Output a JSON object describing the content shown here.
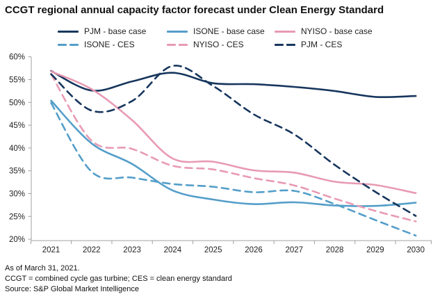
{
  "page": {
    "title": "CCGT regional annual capacity factor forecast under Clean Energy Standard",
    "footer_lines": [
      "As of March 31, 2021.",
      "CCGT = combined cycle gas turbine; CES = clean energy standard",
      "Source: S&P Global Market Intelligence"
    ]
  },
  "colors": {
    "navy": "#17365d",
    "blue": "#549ec9",
    "pink": "#e89ab3",
    "axis": "#a0a0a0",
    "text": "#1f1f1f"
  },
  "chart_data": {
    "type": "line",
    "title": "CCGT regional annual capacity factor forecast under Clean Energy Standard",
    "x": [
      2021,
      2022,
      2023,
      2024,
      2025,
      2026,
      2027,
      2028,
      2029,
      2030
    ],
    "x_tick_labels": [
      "2021",
      "2022",
      "2023",
      "2024",
      "2025",
      "2026",
      "2027",
      "2028",
      "2029",
      "2030"
    ],
    "y_tick_labels": [
      "60%",
      "55%",
      "50%",
      "45%",
      "40%",
      "35%",
      "30%",
      "25%",
      "20%"
    ],
    "y_ticks": [
      60,
      55,
      50,
      45,
      40,
      35,
      30,
      25,
      20
    ],
    "ylim": [
      20,
      60
    ],
    "grid": false,
    "legend_position": "top",
    "units": "percent",
    "series": [
      {
        "name": "PJM - base case",
        "color": "navy",
        "style": "solid",
        "values": [
          56.9,
          52.6,
          54.6,
          56.5,
          54.2,
          54.0,
          53.4,
          52.5,
          51.2,
          51.4
        ]
      },
      {
        "name": "ISONE - base case",
        "color": "blue",
        "style": "solid",
        "values": [
          50.4,
          41.0,
          36.5,
          30.7,
          28.7,
          27.7,
          28.1,
          27.4,
          27.3,
          28.0
        ]
      },
      {
        "name": "NYISO - base case",
        "color": "pink",
        "style": "solid",
        "values": [
          56.8,
          52.9,
          46.1,
          37.7,
          37.0,
          35.1,
          34.6,
          32.6,
          31.9,
          30.1
        ]
      },
      {
        "name": "ISONE - CES",
        "color": "blue",
        "style": "dashed",
        "values": [
          49.9,
          34.8,
          33.5,
          32.1,
          31.5,
          30.3,
          30.6,
          27.7,
          24.2,
          20.8
        ]
      },
      {
        "name": "NYISO - CES",
        "color": "pink",
        "style": "dashed",
        "values": [
          56.2,
          41.6,
          39.8,
          36.1,
          35.3,
          33.4,
          31.8,
          28.9,
          26.2,
          23.9
        ]
      },
      {
        "name": "PJM - CES",
        "color": "navy",
        "style": "dashed",
        "values": [
          56.2,
          48.2,
          50.3,
          58.0,
          53.6,
          47.4,
          43.0,
          36.3,
          30.4,
          25.1
        ]
      }
    ]
  }
}
